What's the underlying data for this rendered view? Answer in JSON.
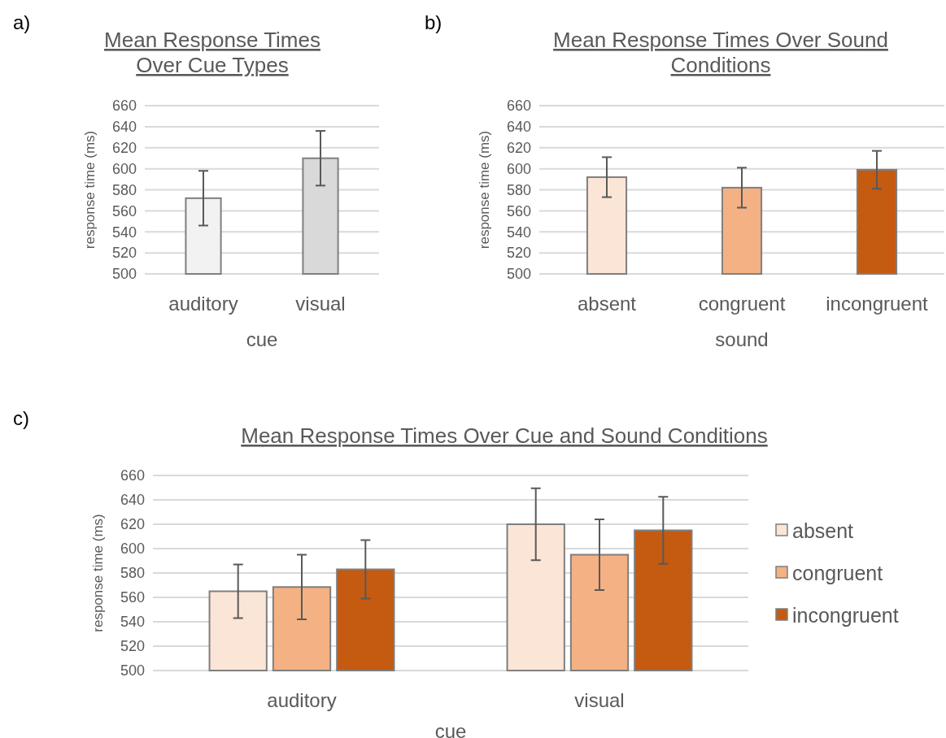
{
  "chart_data": [
    {
      "type": "bar",
      "title": "Mean Response Times Over Cue Types",
      "xlabel": "cue",
      "ylabel": "response time (ms)",
      "annotations": [
        "a)"
      ],
      "categories": [
        "auditory",
        "visual"
      ],
      "values": [
        572,
        610
      ],
      "colors": [
        "#f2f2f2",
        "#d9d9d9"
      ],
      "errors": [
        26,
        26
      ],
      "ylim": [
        500,
        660
      ],
      "yticks": [
        500,
        520,
        540,
        560,
        580,
        600,
        620,
        640,
        660
      ],
      "grid": "y",
      "legend": false
    },
    {
      "type": "bar",
      "title": "Mean Response Times Over Sound Conditions",
      "xlabel": "sound",
      "ylabel": "response time (ms)",
      "annotations": [
        "b)"
      ],
      "categories": [
        "absent",
        "congruent",
        "incongruent"
      ],
      "values": [
        592,
        582,
        599
      ],
      "colors": [
        "#fbe5d6",
        "#f4b183",
        "#c55a11"
      ],
      "errors": [
        19,
        19,
        18
      ],
      "ylim": [
        500,
        660
      ],
      "yticks": [
        500,
        520,
        540,
        560,
        580,
        600,
        620,
        640,
        660
      ],
      "grid": "y",
      "legend": false
    },
    {
      "type": "bar",
      "title": "Mean Response Times Over Cue and Sound Conditions",
      "xlabel": "cue",
      "ylabel": "response time (ms)",
      "annotations": [
        "c)"
      ],
      "categories": [
        "auditory",
        "visual"
      ],
      "series": [
        {
          "name": "absent",
          "color": "#fbe5d6",
          "values": [
            565,
            620
          ],
          "errors": [
            22,
            29.5
          ]
        },
        {
          "name": "congruent",
          "color": "#f4b183",
          "values": [
            568.5,
            595
          ],
          "errors": [
            26.5,
            29
          ]
        },
        {
          "name": "incongruent",
          "color": "#c55a11",
          "values": [
            583,
            615
          ],
          "errors": [
            24,
            27.5
          ]
        }
      ],
      "ylim": [
        500,
        660
      ],
      "yticks": [
        500,
        520,
        540,
        560,
        580,
        600,
        620,
        640,
        660
      ],
      "grid": "y",
      "legend": "right"
    }
  ]
}
